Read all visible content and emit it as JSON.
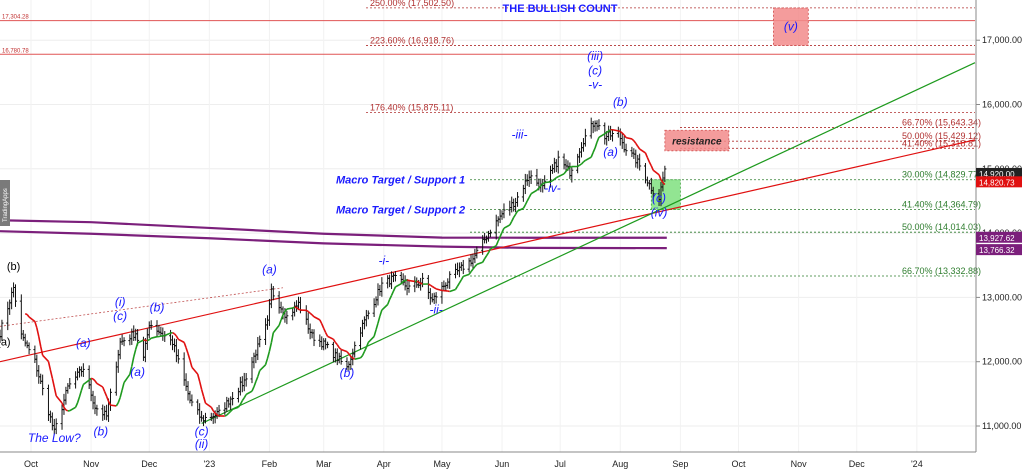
{
  "chart_data": {
    "type": "candlestick",
    "title": "THE BULLISH COUNT",
    "watermark": "TradingApps",
    "x_range": [
      "2022-09-15",
      "2024-01-31"
    ],
    "y_range": [
      10500,
      17900
    ],
    "y_ticks": [
      11000,
      12000,
      13000,
      14000,
      15000,
      16000,
      17000
    ],
    "y_tick_labels": [
      "11,000.00",
      "12,000.00",
      "13,000.00",
      "14,000.00",
      "15,000.00",
      "16,000.00",
      "17,000.00"
    ],
    "x_ticks": [
      {
        "date": "2022-10-01",
        "label": "Oct"
      },
      {
        "date": "2022-11-01",
        "label": "Nov"
      },
      {
        "date": "2022-12-01",
        "label": "Dec"
      },
      {
        "date": "2023-01-01",
        "label": "'23"
      },
      {
        "date": "2023-02-01",
        "label": "Feb"
      },
      {
        "date": "2023-03-01",
        "label": "Mar"
      },
      {
        "date": "2023-04-01",
        "label": "Apr"
      },
      {
        "date": "2023-05-01",
        "label": "May"
      },
      {
        "date": "2023-06-01",
        "label": "Jun"
      },
      {
        "date": "2023-07-01",
        "label": "Jul"
      },
      {
        "date": "2023-08-01",
        "label": "Aug"
      },
      {
        "date": "2023-09-01",
        "label": "Sep"
      },
      {
        "date": "2023-10-01",
        "label": "Oct"
      },
      {
        "date": "2023-11-01",
        "label": "Nov"
      },
      {
        "date": "2023-12-01",
        "label": "Dec"
      },
      {
        "date": "2024-01-01",
        "label": "'24"
      }
    ],
    "price_path": [
      [
        "2022-09-15",
        12450
      ],
      [
        "2022-09-22",
        13150
      ],
      [
        "2022-09-26",
        12400
      ],
      [
        "2022-10-03",
        12000
      ],
      [
        "2022-10-13",
        10900
      ],
      [
        "2022-10-20",
        11600
      ],
      [
        "2022-10-28",
        11900
      ],
      [
        "2022-11-03",
        11300
      ],
      [
        "2022-11-09",
        11150
      ],
      [
        "2022-11-16",
        12300
      ],
      [
        "2022-11-24",
        12450
      ],
      [
        "2022-11-28",
        12050
      ],
      [
        "2022-12-01",
        12600
      ],
      [
        "2022-12-13",
        12300
      ],
      [
        "2022-12-22",
        11400
      ],
      [
        "2022-12-28",
        11100
      ],
      [
        "2023-01-06",
        11200
      ],
      [
        "2023-01-19",
        11700
      ],
      [
        "2023-01-31",
        12600
      ],
      [
        "2023-02-02",
        13100
      ],
      [
        "2023-02-10",
        12700
      ],
      [
        "2023-02-16",
        12900
      ],
      [
        "2023-02-23",
        12400
      ],
      [
        "2023-03-02",
        12250
      ],
      [
        "2023-03-13",
        11900
      ],
      [
        "2023-03-20",
        12500
      ],
      [
        "2023-03-31",
        13200
      ],
      [
        "2023-04-06",
        13300
      ],
      [
        "2023-04-14",
        13150
      ],
      [
        "2023-04-21",
        13250
      ],
      [
        "2023-04-26",
        12950
      ],
      [
        "2023-05-05",
        13300
      ],
      [
        "2023-05-17",
        13600
      ],
      [
        "2023-05-25",
        14000
      ],
      [
        "2023-06-01",
        14300
      ],
      [
        "2023-06-08",
        14500
      ],
      [
        "2023-06-15",
        14900
      ],
      [
        "2023-06-22",
        14700
      ],
      [
        "2023-06-30",
        15150
      ],
      [
        "2023-07-06",
        14950
      ],
      [
        "2023-07-13",
        15450
      ],
      [
        "2023-07-19",
        15750
      ],
      [
        "2023-07-24",
        15500
      ],
      [
        "2023-07-31",
        15550
      ],
      [
        "2023-08-03",
        15350
      ],
      [
        "2023-08-10",
        15100
      ],
      [
        "2023-08-17",
        14700
      ],
      [
        "2023-08-21",
        14550
      ],
      [
        "2023-08-24",
        15000
      ]
    ],
    "series": [
      {
        "name": "",
        "color": "#1e9a1e",
        "kind": "moving-average"
      },
      {
        "name": "",
        "color": "#e01010",
        "kind": "moving-average"
      }
    ],
    "fib_levels": [
      {
        "pct": "250.00%",
        "value": 17502.5,
        "text": "250.00% (17,502.50)",
        "color": "#b03030"
      },
      {
        "pct": "223.60%",
        "value": 16918.76,
        "text": "223.60% (16,918.76)",
        "color": "#b03030"
      },
      {
        "pct": "176.40%",
        "value": 15875.11,
        "text": "176.40% (15,875.11)",
        "color": "#b03030"
      },
      {
        "pct": "66.70%",
        "value": 15643.34,
        "text": "66.70% (15,643.34)",
        "color": "#b03030"
      },
      {
        "pct": "50.00%",
        "value": 15429.12,
        "text": "50.00% (15,429.12)",
        "color": "#b03030"
      },
      {
        "pct": "41.40%",
        "value": 15318.81,
        "text": "41.40% (15,318.81)",
        "color": "#b03030"
      },
      {
        "pct": "30.00%",
        "value": 14829.77,
        "text": "30.00% (14,829.77)",
        "color": "#2e7d2e"
      },
      {
        "pct": "41.40%",
        "value": 14364.79,
        "text": "41.40% (14,364.79)",
        "color": "#2e7d2e"
      },
      {
        "pct": "50.00%",
        "value": 14014.03,
        "text": "50.00% (14,014.03)",
        "color": "#2e7d2e"
      },
      {
        "pct": "66.70%",
        "value": 13332.88,
        "text": "66.70% (13,332.88)",
        "color": "#2e7d2e"
      }
    ],
    "horizontal_refs": [
      {
        "value": 17304.28,
        "label": "17,304.28"
      },
      {
        "value": 16780.78,
        "label": "16,780.78"
      }
    ],
    "price_tags": [
      {
        "value": 14920.0,
        "label": "14,920.00",
        "color": "#222222"
      },
      {
        "value": 14820.73,
        "label": "14,820.73",
        "color": "#e01010"
      },
      {
        "value": 13927.62,
        "label": "13,927.62",
        "color": "#7b1f7b"
      },
      {
        "value": 13766.32,
        "label": "13,766.32",
        "color": "#7b1f7b"
      }
    ],
    "macro_labels": [
      {
        "text": "Macro Target / Support 1",
        "value": 14829.77
      },
      {
        "text": "Macro Target / Support 2",
        "value": 14364.79
      }
    ],
    "zones": [
      {
        "name": "wave-v-target",
        "label": "(v)",
        "from": [
          "2023-10-19",
          17502
        ],
        "to": [
          "2023-11-06",
          16918
        ],
        "color": "#f28b8b"
      },
      {
        "name": "resistance",
        "label": "resistance",
        "from": [
          "2023-08-24",
          15600
        ],
        "to": [
          "2023-09-26",
          15280
        ],
        "color": "#f28b8b"
      },
      {
        "name": "support",
        "label": "",
        "from": [
          "2023-08-17",
          14830
        ],
        "to": [
          "2023-09-01",
          14365
        ],
        "color": "#7fe07f"
      }
    ],
    "wave_labels": [
      {
        "text": "(b)",
        "date": "2022-09-22",
        "value": 13430,
        "style": "black"
      },
      {
        "text": "(a)",
        "date": "2022-09-17",
        "value": 12250,
        "style": "black"
      },
      {
        "text": "The Low?",
        "date": "2022-10-13",
        "value": 10750,
        "style": "blue"
      },
      {
        "text": "(a)",
        "date": "2022-10-28",
        "value": 12230,
        "style": "blue"
      },
      {
        "text": "(b)",
        "date": "2022-11-06",
        "value": 10850,
        "style": "blue"
      },
      {
        "text": "(i)",
        "date": "2022-11-16",
        "value": 12870,
        "style": "blue"
      },
      {
        "text": "(c)",
        "date": "2022-11-16",
        "value": 12650,
        "style": "blue"
      },
      {
        "text": "(a)",
        "date": "2022-11-25",
        "value": 11780,
        "style": "blue"
      },
      {
        "text": "(b)",
        "date": "2022-12-05",
        "value": 12780,
        "style": "blue"
      },
      {
        "text": "(c)",
        "date": "2022-12-28",
        "value": 10850,
        "style": "blue"
      },
      {
        "text": "(ii)",
        "date": "2022-12-28",
        "value": 10660,
        "style": "blue"
      },
      {
        "text": "(a)",
        "date": "2023-02-01",
        "value": 13370,
        "style": "blue"
      },
      {
        "text": "(b)",
        "date": "2023-03-13",
        "value": 11760,
        "style": "blue"
      },
      {
        "text": "-i-",
        "date": "2023-04-01",
        "value": 13510,
        "style": "blue"
      },
      {
        "text": "-ii-",
        "date": "2023-04-28",
        "value": 12750,
        "style": "blue"
      },
      {
        "text": "-iii-",
        "date": "2023-06-10",
        "value": 15470,
        "style": "blue"
      },
      {
        "text": "-iv-",
        "date": "2023-06-27",
        "value": 14640,
        "style": "blue"
      },
      {
        "text": "(iii)",
        "date": "2023-07-19",
        "value": 16690,
        "style": "blue"
      },
      {
        "text": "(c)",
        "date": "2023-07-19",
        "value": 16470,
        "style": "blue"
      },
      {
        "text": "-v-",
        "date": "2023-07-19",
        "value": 16250,
        "style": "blue"
      },
      {
        "text": "(b)",
        "date": "2023-08-01",
        "value": 15980,
        "style": "blue"
      },
      {
        "text": "(a)",
        "date": "2023-07-27",
        "value": 15200,
        "style": "blue"
      },
      {
        "text": "(c)",
        "date": "2023-08-21",
        "value": 14480,
        "style": "blue"
      },
      {
        "text": "(iv)",
        "date": "2023-08-21",
        "value": 14260,
        "style": "blue"
      }
    ],
    "trendlines": [
      {
        "name": "red-trendline",
        "color": "#e01010",
        "from": [
          "2022-09-15",
          12000
        ],
        "to": [
          "2024-01-31",
          15450
        ]
      },
      {
        "name": "green-trendline",
        "color": "#1e9a1e",
        "from": [
          "2022-12-28",
          11040
        ],
        "to": [
          "2024-01-31",
          16650
        ]
      }
    ]
  }
}
